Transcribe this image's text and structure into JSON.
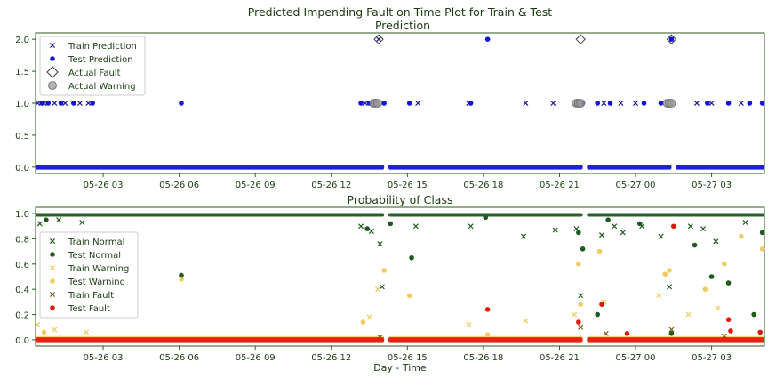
{
  "figure": {
    "suptitle": "Predicted Impending Fault on Time Plot for Train & Test",
    "xlabel": "Day - Time"
  },
  "colors": {
    "axes_edge": "#2f5a1f",
    "tick_text": "#1a3a12",
    "train_pred": "#1f1f8f",
    "test_pred": "#1414d6",
    "actual_fault": "#3a3a3a",
    "actual_warning": "#6a6a6a",
    "normal": "#1e5a1e",
    "warning": "#f0cc60",
    "fault_train": "#7a5a1a",
    "fault_test": "#e01a0a"
  },
  "chart_data": [
    {
      "type": "scatter",
      "title": "Prediction",
      "xlim": [
        "05-26 00:20",
        "05-27 05:05"
      ],
      "ylim": [
        -0.1,
        2.1
      ],
      "yticks": [
        "0.0",
        "0.5",
        "1.0",
        "1.5",
        "2.0"
      ],
      "xtick_labels": [
        "05-26 03",
        "05-26 06",
        "05-26 09",
        "05-26 12",
        "05-26 15",
        "05-26 18",
        "05-26 21",
        "05-27 00",
        "05-27 03"
      ],
      "legend_position": "upper left",
      "series": [
        {
          "name": "Train Prediction",
          "marker": "x",
          "points": [
            {
              "t": "05-26 00:25",
              "y": 1
            },
            {
              "t": "05-26 00:40",
              "y": 1
            },
            {
              "t": "05-26 01:05",
              "y": 1
            },
            {
              "t": "05-26 01:30",
              "y": 1
            },
            {
              "t": "05-26 02:05",
              "y": 1
            },
            {
              "t": "05-26 02:25",
              "y": 1
            },
            {
              "t": "05-26 13:20",
              "y": 1
            },
            {
              "t": "05-26 13:45",
              "y": 1
            },
            {
              "t": "05-26 13:52",
              "y": 2
            },
            {
              "t": "05-26 15:25",
              "y": 1
            },
            {
              "t": "05-26 17:25",
              "y": 1
            },
            {
              "t": "05-26 19:40",
              "y": 1
            },
            {
              "t": "05-26 20:45",
              "y": 1
            },
            {
              "t": "05-26 21:40",
              "y": 1
            },
            {
              "t": "05-26 22:45",
              "y": 1
            },
            {
              "t": "05-26 23:25",
              "y": 1
            },
            {
              "t": "05-27 00:00",
              "y": 1
            },
            {
              "t": "05-27 01:20",
              "y": 1
            },
            {
              "t": "05-27 01:25",
              "y": 2
            },
            {
              "t": "05-27 02:25",
              "y": 1
            },
            {
              "t": "05-27 03:00",
              "y": 1
            },
            {
              "t": "05-27 04:10",
              "y": 1
            }
          ]
        },
        {
          "name": "Test Prediction",
          "marker": "o",
          "points": [
            {
              "t": "05-26 00:35",
              "y": 1
            },
            {
              "t": "05-26 00:50",
              "y": 1
            },
            {
              "t": "05-26 01:20",
              "y": 1
            },
            {
              "t": "05-26 01:50",
              "y": 1
            },
            {
              "t": "05-26 02:35",
              "y": 1
            },
            {
              "t": "05-26 06:05",
              "y": 1
            },
            {
              "t": "05-26 13:10",
              "y": 1
            },
            {
              "t": "05-26 13:30",
              "y": 1
            },
            {
              "t": "05-26 14:05",
              "y": 1
            },
            {
              "t": "05-26 15:05",
              "y": 1
            },
            {
              "t": "05-26 17:30",
              "y": 1
            },
            {
              "t": "05-26 18:10",
              "y": 2
            },
            {
              "t": "05-26 21:45",
              "y": 1
            },
            {
              "t": "05-26 21:55",
              "y": 1
            },
            {
              "t": "05-26 22:30",
              "y": 1
            },
            {
              "t": "05-26 23:00",
              "y": 1
            },
            {
              "t": "05-27 00:20",
              "y": 1
            },
            {
              "t": "05-27 01:00",
              "y": 1
            },
            {
              "t": "05-27 01:25",
              "y": 2
            },
            {
              "t": "05-27 02:50",
              "y": 1
            },
            {
              "t": "05-27 03:40",
              "y": 1
            },
            {
              "t": "05-27 04:30",
              "y": 1
            },
            {
              "t": "05-27 05:00",
              "y": 1
            }
          ],
          "baseline": {
            "y": 0,
            "segments": [
              [
                "05-26 00:20",
                "05-26 14:05"
              ],
              [
                "05-26 14:15",
                "05-26 21:55"
              ],
              [
                "05-26 22:05",
                "05-27 01:25"
              ],
              [
                "05-27 01:35",
                "05-27 05:05"
              ]
            ]
          }
        },
        {
          "name": "Actual Fault",
          "marker": "D",
          "points": [
            {
              "t": "05-26 13:52",
              "y": 2
            },
            {
              "t": "05-26 21:50",
              "y": 2
            },
            {
              "t": "05-27 01:25",
              "y": 2
            }
          ]
        },
        {
          "name": "Actual Warning",
          "marker": "o-open",
          "points": [
            {
              "t": "05-26 13:40",
              "y": 1
            },
            {
              "t": "05-26 13:45",
              "y": 1
            },
            {
              "t": "05-26 13:50",
              "y": 1
            },
            {
              "t": "05-26 21:40",
              "y": 1
            },
            {
              "t": "05-26 21:45",
              "y": 1
            },
            {
              "t": "05-26 21:50",
              "y": 1
            },
            {
              "t": "05-27 01:15",
              "y": 1
            },
            {
              "t": "05-27 01:20",
              "y": 1
            },
            {
              "t": "05-27 01:25",
              "y": 1
            }
          ]
        }
      ]
    },
    {
      "type": "scatter",
      "title": "Probability of Class",
      "xlabel": "Day - Time",
      "xlim": [
        "05-26 00:20",
        "05-27 05:05"
      ],
      "ylim": [
        -0.05,
        1.05
      ],
      "yticks": [
        "0.0",
        "0.2",
        "0.4",
        "0.6",
        "0.8",
        "1.0"
      ],
      "xtick_labels": [
        "05-26 03",
        "05-26 06",
        "05-26 09",
        "05-26 12",
        "05-26 15",
        "05-26 18",
        "05-26 21",
        "05-27 00",
        "05-27 03"
      ],
      "legend_position": "center left",
      "series": [
        {
          "name": "Train Normal",
          "marker": "x",
          "points": [
            {
              "t": "05-26 00:30",
              "y": 0.92
            },
            {
              "t": "05-26 01:15",
              "y": 0.95
            },
            {
              "t": "05-26 02:10",
              "y": 0.93
            },
            {
              "t": "05-26 13:10",
              "y": 0.9
            },
            {
              "t": "05-26 13:35",
              "y": 0.86
            },
            {
              "t": "05-26 13:55",
              "y": 0.76
            },
            {
              "t": "05-26 14:00",
              "y": 0.42
            },
            {
              "t": "05-26 15:20",
              "y": 0.9
            },
            {
              "t": "05-26 17:30",
              "y": 0.9
            },
            {
              "t": "05-26 19:35",
              "y": 0.82
            },
            {
              "t": "05-26 20:50",
              "y": 0.87
            },
            {
              "t": "05-26 21:40",
              "y": 0.88
            },
            {
              "t": "05-26 21:50",
              "y": 0.35
            },
            {
              "t": "05-26 22:40",
              "y": 0.83
            },
            {
              "t": "05-26 23:10",
              "y": 0.9
            },
            {
              "t": "05-26 23:30",
              "y": 0.85
            },
            {
              "t": "05-27 00:15",
              "y": 0.9
            },
            {
              "t": "05-27 01:00",
              "y": 0.82
            },
            {
              "t": "05-27 01:20",
              "y": 0.42
            },
            {
              "t": "05-27 02:10",
              "y": 0.9
            },
            {
              "t": "05-27 02:40",
              "y": 0.88
            },
            {
              "t": "05-27 03:10",
              "y": 0.78
            },
            {
              "t": "05-27 04:20",
              "y": 0.93
            }
          ],
          "baseline": {
            "y": 0.99,
            "segments": [
              [
                "05-26 00:20",
                "05-26 14:05"
              ],
              [
                "05-26 14:15",
                "05-26 21:55"
              ],
              [
                "05-26 22:05",
                "05-27 05:05"
              ]
            ]
          }
        },
        {
          "name": "Test Normal",
          "marker": "o",
          "points": [
            {
              "t": "05-26 00:45",
              "y": 0.95
            },
            {
              "t": "05-26 06:05",
              "y": 0.51
            },
            {
              "t": "05-26 13:25",
              "y": 0.88
            },
            {
              "t": "05-26 14:20",
              "y": 0.92
            },
            {
              "t": "05-26 15:10",
              "y": 0.65
            },
            {
              "t": "05-26 18:05",
              "y": 0.97
            },
            {
              "t": "05-26 21:45",
              "y": 0.85
            },
            {
              "t": "05-26 21:55",
              "y": 0.72
            },
            {
              "t": "05-26 22:30",
              "y": 0.2
            },
            {
              "t": "05-26 22:55",
              "y": 0.95
            },
            {
              "t": "05-27 00:10",
              "y": 0.92
            },
            {
              "t": "05-27 01:25",
              "y": 0.05
            },
            {
              "t": "05-27 02:20",
              "y": 0.75
            },
            {
              "t": "05-27 03:00",
              "y": 0.5
            },
            {
              "t": "05-27 03:40",
              "y": 0.45
            },
            {
              "t": "05-27 04:40",
              "y": 0.2
            },
            {
              "t": "05-27 05:00",
              "y": 0.85
            }
          ]
        },
        {
          "name": "Train Warning",
          "marker": "x",
          "points": [
            {
              "t": "05-26 00:25",
              "y": 0.12
            },
            {
              "t": "05-26 01:05",
              "y": 0.08
            },
            {
              "t": "05-26 02:20",
              "y": 0.06
            },
            {
              "t": "05-26 13:30",
              "y": 0.18
            },
            {
              "t": "05-26 13:50",
              "y": 0.4
            },
            {
              "t": "05-26 17:25",
              "y": 0.12
            },
            {
              "t": "05-26 19:40",
              "y": 0.15
            },
            {
              "t": "05-26 21:35",
              "y": 0.2
            },
            {
              "t": "05-26 22:45",
              "y": 0.3
            },
            {
              "t": "05-27 00:55",
              "y": 0.35
            },
            {
              "t": "05-27 02:05",
              "y": 0.2
            },
            {
              "t": "05-27 03:15",
              "y": 0.25
            }
          ]
        },
        {
          "name": "Test Warning",
          "marker": "o",
          "points": [
            {
              "t": "05-26 00:40",
              "y": 0.06
            },
            {
              "t": "05-26 06:05",
              "y": 0.48
            },
            {
              "t": "05-26 13:15",
              "y": 0.14
            },
            {
              "t": "05-26 14:05",
              "y": 0.55
            },
            {
              "t": "05-26 15:05",
              "y": 0.35
            },
            {
              "t": "05-26 18:10",
              "y": 0.04
            },
            {
              "t": "05-26 21:45",
              "y": 0.6
            },
            {
              "t": "05-26 21:50",
              "y": 0.28
            },
            {
              "t": "05-26 22:35",
              "y": 0.7
            },
            {
              "t": "05-27 01:10",
              "y": 0.52
            },
            {
              "t": "05-27 01:20",
              "y": 0.55
            },
            {
              "t": "05-27 02:45",
              "y": 0.4
            },
            {
              "t": "05-27 03:30",
              "y": 0.6
            },
            {
              "t": "05-27 04:10",
              "y": 0.82
            },
            {
              "t": "05-27 05:00",
              "y": 0.72
            }
          ],
          "baseline": {
            "y": 0.01,
            "segments": [
              [
                "05-26 00:20",
                "05-26 14:05"
              ],
              [
                "05-26 14:15",
                "05-26 21:55"
              ],
              [
                "05-26 22:05",
                "05-27 05:05"
              ]
            ]
          }
        },
        {
          "name": "Train Fault",
          "marker": "x",
          "points": [
            {
              "t": "05-26 13:55",
              "y": 0.02
            },
            {
              "t": "05-26 21:50",
              "y": 0.1
            },
            {
              "t": "05-26 22:50",
              "y": 0.05
            },
            {
              "t": "05-27 01:25",
              "y": 0.08
            },
            {
              "t": "05-27 03:30",
              "y": 0.03
            }
          ]
        },
        {
          "name": "Test Fault",
          "marker": "o",
          "points": [
            {
              "t": "05-26 18:10",
              "y": 0.24
            },
            {
              "t": "05-26 21:45",
              "y": 0.14
            },
            {
              "t": "05-26 22:40",
              "y": 0.28
            },
            {
              "t": "05-26 23:40",
              "y": 0.05
            },
            {
              "t": "05-27 01:30",
              "y": 0.9
            },
            {
              "t": "05-27 03:40",
              "y": 0.16
            },
            {
              "t": "05-27 03:45",
              "y": 0.07
            },
            {
              "t": "05-27 04:55",
              "y": 0.06
            }
          ],
          "baseline": {
            "y": 0.0,
            "segments": [
              [
                "05-26 00:20",
                "05-26 14:05"
              ],
              [
                "05-26 14:15",
                "05-26 21:55"
              ],
              [
                "05-26 22:05",
                "05-27 05:05"
              ]
            ]
          }
        }
      ]
    }
  ]
}
